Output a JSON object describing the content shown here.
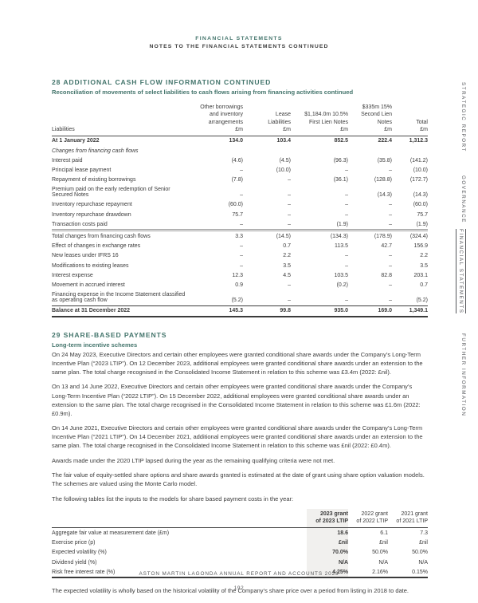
{
  "page": {
    "eyebrow": "FINANCIAL STATEMENTS",
    "title": "NOTES TO THE FINANCIAL STATEMENTS CONTINUED",
    "footer_line": "ASTON MARTIN LAGONDA ANNUAL REPORT AND ACCOUNTS 2023",
    "footer_page": "192"
  },
  "colors": {
    "accent_teal": "#44756C",
    "text_dark": "#3B3B3B",
    "sidebar_gray": "#54565A",
    "column_shade": "#F1F0EE"
  },
  "sidebar": {
    "items": [
      {
        "label": "STRATEGIC REPORT",
        "active": false
      },
      {
        "label": "GOVERNANCE",
        "active": false
      },
      {
        "label": "FINANCIAL STATEMENTS",
        "active": true
      },
      {
        "label": "FURTHER INFORMATION",
        "active": false
      }
    ]
  },
  "section28": {
    "heading": "28 ADDITIONAL CASH FLOW INFORMATION CONTINUED",
    "subheading": "Reconciliation of movements of select liabilities to cash flows arising from financing activities continued",
    "table": {
      "label_header": "Liabilities",
      "col_headers": [
        [
          "Other borrowings",
          "and inventory",
          "arrangements",
          "£m"
        ],
        [
          "Lease",
          "Liabilities",
          "£m"
        ],
        [
          "$1,184.0m 10.5%",
          "First Lien Notes",
          "£m"
        ],
        [
          "$335m 15%",
          "Second Lien Notes",
          "£m"
        ],
        [
          "Total",
          "£m"
        ]
      ],
      "rows": [
        {
          "label": "At 1 January 2022",
          "values": [
            "134.0",
            "103.4",
            "852.5",
            "222.4",
            "1,312.3"
          ],
          "cls": "bold"
        },
        {
          "label": "Changes from financing cash flows",
          "values": [
            "",
            "",
            "",
            "",
            ""
          ],
          "cls": "italic"
        },
        {
          "label": "Interest paid",
          "values": [
            "(4.6)",
            "(4.5)",
            "(96.3)",
            "(35.8)",
            "(141.2)"
          ],
          "cls": ""
        },
        {
          "label": "Principal lease payment",
          "values": [
            "–",
            "(10.0)",
            "–",
            "–",
            "(10.0)"
          ],
          "cls": ""
        },
        {
          "label": "Repayment of existing borrowings",
          "values": [
            "(7.8)",
            "–",
            "(36.1)",
            "(128.8)",
            "(172.7)"
          ],
          "cls": ""
        },
        {
          "label": "Premium paid on the early redemption of Senior Secured Notes",
          "values": [
            "–",
            "–",
            "–",
            "(14.3)",
            "(14.3)"
          ],
          "cls": ""
        },
        {
          "label": "Inventory repurchase repayment",
          "values": [
            "(60.0)",
            "–",
            "–",
            "–",
            "(60.0)"
          ],
          "cls": ""
        },
        {
          "label": "Inventory repurchase drawdown",
          "values": [
            "75.7",
            "–",
            "–",
            "–",
            "75.7"
          ],
          "cls": ""
        },
        {
          "label": "Transaction costs paid",
          "values": [
            "–",
            "–",
            "(1.9)",
            "–",
            "(1.9)"
          ],
          "cls": "sep-gray"
        },
        {
          "label": "Total changes from financing cash flows",
          "values": [
            "3.3",
            "(14.5)",
            "(134.3)",
            "(178.9)",
            "(324.4)"
          ],
          "cls": ""
        },
        {
          "label": "Effect of changes in exchange rates",
          "values": [
            "–",
            "0.7",
            "113.5",
            "42.7",
            "156.9"
          ],
          "cls": ""
        },
        {
          "label": "New leases under IFRS 16",
          "values": [
            "–",
            "2.2",
            "–",
            "–",
            "2.2"
          ],
          "cls": ""
        },
        {
          "label": "Modifications to existing leases",
          "values": [
            "–",
            "3.5",
            "–",
            "–",
            "3.5"
          ],
          "cls": ""
        },
        {
          "label": "Interest expense",
          "values": [
            "12.3",
            "4.5",
            "103.5",
            "82.8",
            "203.1"
          ],
          "cls": ""
        },
        {
          "label": "Movement in accrued interest",
          "values": [
            "0.9",
            "–",
            "(0.2)",
            "–",
            "0.7"
          ],
          "cls": ""
        },
        {
          "label": "Financing expense in the Income Statement classified as operating cash flow",
          "values": [
            "(5.2)",
            "–",
            "–",
            "–",
            "(5.2)"
          ],
          "cls": "sep-dark"
        },
        {
          "label": "Balance at 31 December 2022",
          "values": [
            "145.3",
            "99.8",
            "935.0",
            "169.0",
            "1,349.1"
          ],
          "cls": "bold total"
        }
      ]
    }
  },
  "section29": {
    "heading": "29 SHARE-BASED PAYMENTS",
    "subheading": "Long-term incentive schemes",
    "paragraphs": [
      "On 24 May 2023, Executive Directors and certain other employees were granted conditional share awards under the Company’s Long-Term Incentive Plan (“2023 LTIP”). On 12 December 2023, additional employees were granted conditional share awards under an extension to the same plan. The total charge recognised in the Consolidated Income Statement in relation to this scheme was £3.4m (2022: £nil).",
      "On 13 and 14 June 2022, Executive Directors and certain other employees were granted conditional share awards under the Company’s Long-Term Incentive Plan (“2022 LTIP”). On 15 December 2022, additional employees were granted conditional share awards under an extension to the same plan. The total charge recognised in the Consolidated Income Statement in relation to this scheme was £1.6m (2022: £0.9m).",
      "On 14 June 2021, Executive Directors and certain other employees were granted conditional share awards under the Company’s Long-Term Incentive Plan (“2021 LTIP”). On 14 December 2021, additional employees were granted conditional share awards under an extension to the same plan. The total charge recognised in the Consolidated Income Statement in relation to this scheme was £nil (2022: £0.4m).",
      "Awards made under the 2020 LTIP lapsed during the year as the remaining qualifying criteria were not met.",
      "The fair value of equity-settled share options and share awards granted is estimated at the date of grant using share option valuation models. The schemes are valued using the Monte Carlo model.",
      "The following tables list the inputs to the models for share based payment costs in the year:"
    ],
    "table": {
      "label_header": "",
      "col_headers": [
        [
          "2023 grant",
          "of 2023 LTIP"
        ],
        [
          "2022 grant",
          "of 2022 LTIP"
        ],
        [
          "2021 grant",
          "of 2021 LTIP"
        ]
      ],
      "rows": [
        {
          "label": "Aggregate fair value at measurement date (£m)",
          "values": [
            "18.6",
            "6.1",
            "7.3"
          ]
        },
        {
          "label": "Exercise price (p)",
          "values": [
            "£nil",
            "£nil",
            "£nil"
          ]
        },
        {
          "label": "Expected volatility (%)",
          "values": [
            "70.0%",
            "50.0%",
            "50.0%"
          ]
        },
        {
          "label": "Dividend yield (%)",
          "values": [
            "N/A",
            "N/A",
            "N/A"
          ]
        },
        {
          "label": "Risk free interest rate (%)",
          "values": [
            "4.25%",
            "2.16%",
            "0.15%"
          ]
        }
      ]
    },
    "closing": "The expected volatility is wholly based on the historical volatility of the Company’s share price over a period from listing in 2018 to date."
  }
}
